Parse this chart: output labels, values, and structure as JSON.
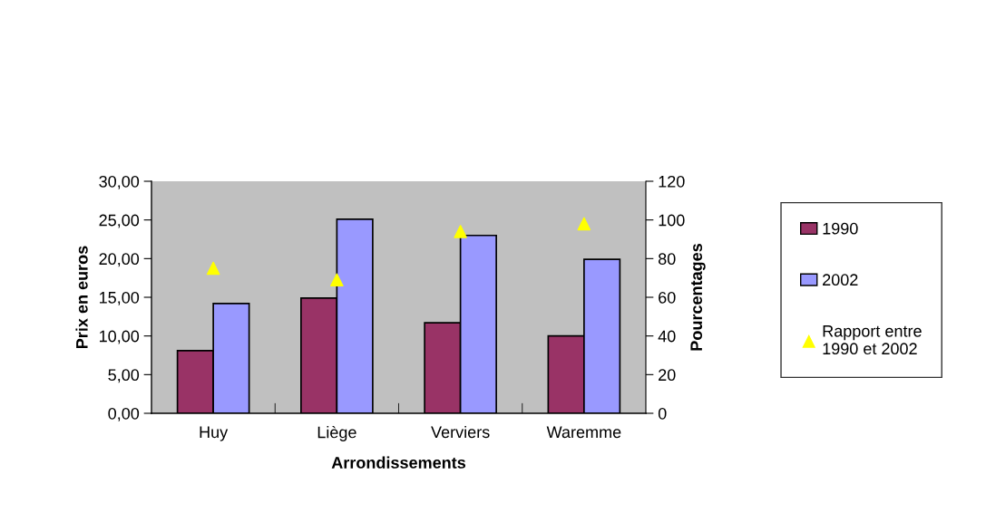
{
  "chart_data": {
    "type": "bar",
    "xlabel": "Arrondissements",
    "ylabel": "Prix en euros",
    "y2label": "Pourcentages",
    "categories": [
      "Huy",
      "Liège",
      "Verviers",
      "Waremme"
    ],
    "series": [
      {
        "name": "1990",
        "color": "#993366",
        "values": [
          8.1,
          14.9,
          11.7,
          10.0
        ]
      },
      {
        "name": "2002",
        "color": "#9999ff",
        "values": [
          14.2,
          25.1,
          23.0,
          19.9
        ]
      },
      {
        "name": "Rapport entre\n1990 et 2002",
        "type": "scatter",
        "axis": "y2",
        "color": "#ffff00",
        "marker": "triangle",
        "values": [
          75,
          69,
          94,
          98
        ]
      }
    ],
    "ylim": [
      0,
      30
    ],
    "yticks": [
      {
        "value": 0,
        "label": "0,00"
      },
      {
        "value": 5,
        "label": "5,00"
      },
      {
        "value": 10,
        "label": "10,00"
      },
      {
        "value": 15,
        "label": "15,00"
      },
      {
        "value": 20,
        "label": "20,00"
      },
      {
        "value": 25,
        "label": "25,00"
      },
      {
        "value": 30,
        "label": "30,00"
      }
    ],
    "y2lim": [
      0,
      120
    ],
    "y2ticks": [
      0,
      20,
      40,
      60,
      80,
      100,
      120
    ],
    "grid": false,
    "legend": "right"
  }
}
